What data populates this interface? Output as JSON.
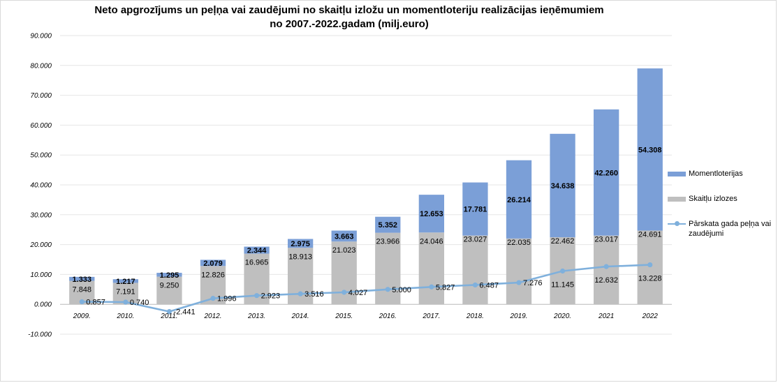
{
  "chart_data": {
    "type": "bar",
    "title_line1": "Neto apgrozījums un peļņa vai zaudējumi no skaitļu izložu un momentloteriju realizācijas ieņēmumiem",
    "title_line2": "no 2007.-2022.gadam (milj.euro)",
    "xlabel": "",
    "ylabel": "",
    "ylim": [
      -10,
      90
    ],
    "y_ticks": [
      "-10.000",
      "0.000",
      "10.000",
      "20.000",
      "30.000",
      "40.000",
      "50.000",
      "60.000",
      "70.000",
      "80.000",
      "90.000"
    ],
    "y_tick_values": [
      -10,
      0,
      10,
      20,
      30,
      40,
      50,
      60,
      70,
      80,
      90
    ],
    "categories": [
      "2009.",
      "2010.",
      "2011.",
      "2012.",
      "2013.",
      "2014.",
      "2015.",
      "2016.",
      "2017.",
      "2018.",
      "2019.",
      "2020.",
      "2021",
      "2022"
    ],
    "series": [
      {
        "name": "Skaitļu izlozes",
        "kind": "bar",
        "color": "#bfbfbf",
        "values": [
          7.848,
          7.191,
          9.25,
          12.826,
          16.965,
          18.913,
          21.023,
          23.966,
          24.046,
          23.027,
          22.035,
          22.462,
          23.017,
          24.691
        ],
        "labels": [
          "7.848",
          "7.191",
          "9.250",
          "12.826",
          "16.965",
          "18.913",
          "21.023",
          "23.966",
          "24.046",
          "23.027",
          "22.035",
          "22.462",
          "23.017",
          "24.691"
        ]
      },
      {
        "name": "Momentloterijas",
        "kind": "bar",
        "color": "#7b9fd7",
        "values": [
          1.333,
          1.217,
          1.295,
          2.079,
          2.344,
          2.975,
          3.663,
          5.352,
          12.653,
          17.781,
          26.214,
          34.638,
          42.26,
          54.308
        ],
        "labels": [
          "1.333",
          "1.217",
          "1.295",
          "2.079",
          "2.344",
          "2.975",
          "3.663",
          "5.352",
          "12.653",
          "17.781",
          "26.214",
          "34.638",
          "42.260",
          "54.308"
        ]
      },
      {
        "name": "Pārskata gada peļņa vai zaudējumi",
        "kind": "line",
        "color": "#7fb0dc",
        "values": [
          0.857,
          0.74,
          -2.441,
          1.996,
          2.923,
          3.516,
          4.027,
          5.0,
          5.827,
          6.487,
          7.276,
          11.145,
          12.632,
          13.228
        ],
        "labels": [
          "0.857",
          "0.740",
          "-2.441",
          "1.996",
          "2.923",
          "3.516",
          "4.027",
          "5.000",
          "5.827",
          "6.487",
          "7.276",
          "11.145",
          "12.632",
          "13.228"
        ]
      }
    ],
    "legend": {
      "position": "right",
      "items": [
        "Momentloterijas",
        "Skaitļu izlozes",
        "Pārskata gada peļņa vai zaudējumi"
      ]
    },
    "grid": true
  }
}
